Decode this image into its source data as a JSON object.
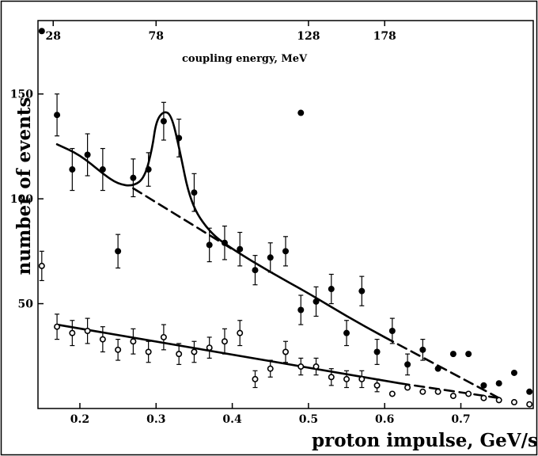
{
  "chart_data": {
    "type": "scatter",
    "title": "",
    "xlabel": "proton impulse,  GeV/sec",
    "ylabel": "number of events",
    "top_axis_label": "coupling energy,  MeV",
    "xlim": [
      0.145,
      0.795
    ],
    "ylim": [
      0,
      185
    ],
    "x_ticks": [
      0.2,
      0.3,
      0.4,
      0.5,
      0.6,
      0.7
    ],
    "x_tick_labels": [
      "0.2",
      "0.3",
      "0.4",
      "0.5",
      "0.6",
      "0.7"
    ],
    "y_ticks": [
      50,
      100,
      150
    ],
    "y_tick_labels": [
      "50",
      "100",
      "150"
    ],
    "top_ticks": [
      {
        "label": "28",
        "x": 0.165
      },
      {
        "label": "78",
        "x": 0.3
      },
      {
        "label": "128",
        "x": 0.5
      },
      {
        "label": "178",
        "x": 0.6
      }
    ],
    "grid": false,
    "series": [
      {
        "marker": "filled",
        "x": [
          0.15,
          0.17,
          0.19,
          0.21,
          0.23,
          0.25,
          0.27,
          0.29,
          0.31,
          0.33,
          0.35,
          0.37,
          0.39,
          0.41,
          0.43,
          0.45,
          0.47,
          0.49,
          0.49,
          0.51,
          0.53,
          0.55,
          0.57,
          0.59,
          0.61,
          0.63,
          0.65,
          0.67,
          0.69,
          0.71,
          0.73,
          0.75,
          0.77,
          0.79
        ],
        "y": [
          180,
          140,
          114,
          121,
          114,
          75,
          110,
          114,
          137,
          129,
          103,
          78,
          79,
          76,
          66,
          72,
          75,
          47,
          141,
          51,
          57,
          36,
          56,
          27,
          37,
          21,
          28,
          19,
          26,
          26,
          11,
          12,
          17,
          8
        ],
        "err": [
          0,
          10,
          10,
          10,
          10,
          8,
          9,
          8,
          9,
          9,
          9,
          8,
          8,
          8,
          7,
          7,
          7,
          7,
          0,
          7,
          7,
          6,
          7,
          6,
          6,
          5,
          5,
          0,
          0,
          0,
          0,
          0,
          0,
          0
        ]
      },
      {
        "marker": "open",
        "x": [
          0.15,
          0.17,
          0.19,
          0.21,
          0.23,
          0.25,
          0.27,
          0.29,
          0.31,
          0.33,
          0.35,
          0.37,
          0.39,
          0.41,
          0.43,
          0.45,
          0.47,
          0.49,
          0.51,
          0.53,
          0.55,
          0.57,
          0.59,
          0.61,
          0.63,
          0.65,
          0.67,
          0.69,
          0.71,
          0.73,
          0.75,
          0.77,
          0.79
        ],
        "y": [
          68,
          39,
          36,
          37,
          33,
          28,
          32,
          27,
          34,
          26,
          27,
          29,
          32,
          36,
          14,
          19,
          27,
          20,
          20,
          15,
          14,
          14,
          11,
          7,
          10,
          8,
          8,
          6,
          7,
          5,
          4,
          3,
          2
        ],
        "err": [
          7,
          6,
          6,
          6,
          6,
          5,
          6,
          5,
          6,
          5,
          5,
          5,
          6,
          6,
          4,
          4,
          5,
          4,
          4,
          4,
          4,
          4,
          3,
          0,
          0,
          0,
          0,
          0,
          0,
          0,
          0,
          0,
          0
        ]
      }
    ],
    "curves": [
      {
        "style": "solid",
        "x": [
          0.17,
          0.2,
          0.23,
          0.25,
          0.27,
          0.285,
          0.295,
          0.3,
          0.31,
          0.32,
          0.33,
          0.345,
          0.37,
          0.4,
          0.45,
          0.5,
          0.55,
          0.6
        ],
        "y": [
          126,
          121,
          112,
          107,
          106,
          110,
          124,
          137,
          142,
          140,
          125,
          98,
          84,
          76,
          65,
          55,
          44,
          34
        ]
      },
      {
        "style": "dashed",
        "x": [
          0.27,
          0.4
        ],
        "y": [
          105,
          76
        ]
      },
      {
        "style": "dashed",
        "x": [
          0.6,
          0.75
        ],
        "y": [
          34,
          5
        ]
      },
      {
        "style": "solid",
        "x": [
          0.17,
          0.62
        ],
        "y": [
          40,
          12
        ]
      },
      {
        "style": "dashed",
        "x": [
          0.62,
          0.75
        ],
        "y": [
          12,
          5
        ]
      }
    ]
  }
}
